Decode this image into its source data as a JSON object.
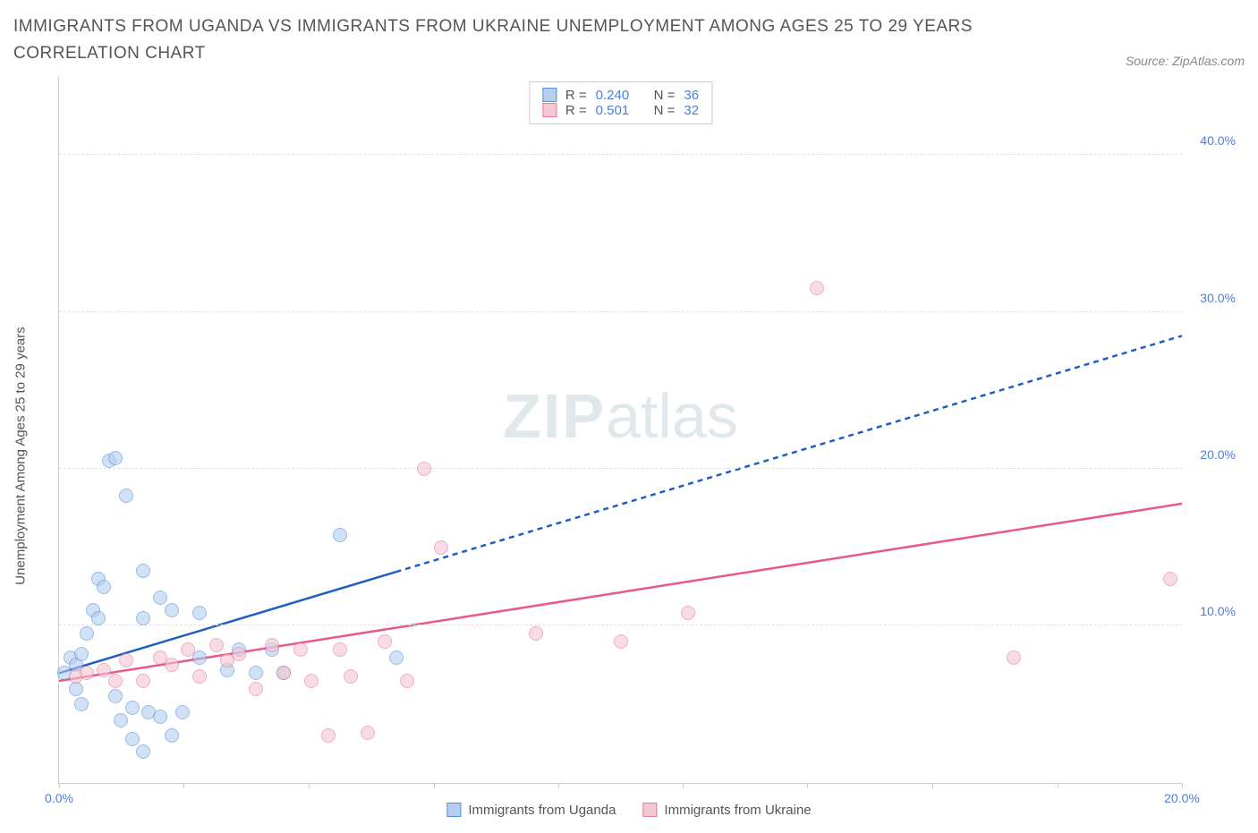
{
  "title": "IMMIGRANTS FROM UGANDA VS IMMIGRANTS FROM UKRAINE UNEMPLOYMENT AMONG AGES 25 TO 29 YEARS CORRELATION CHART",
  "source": "Source: ZipAtlas.com",
  "y_axis_label": "Unemployment Among Ages 25 to 29 years",
  "watermark_zip": "ZIP",
  "watermark_atlas": "atlas",
  "chart": {
    "type": "scatter",
    "xlim": [
      0,
      20
    ],
    "ylim": [
      0,
      45
    ],
    "x_ticks": [
      0,
      2.22,
      4.44,
      6.67,
      8.89,
      11.11,
      13.33,
      15.56,
      17.78,
      20
    ],
    "x_tick_labels": {
      "0": "0.0%",
      "20": "20.0%"
    },
    "y_ticks": [
      10,
      20,
      30,
      40
    ],
    "y_tick_labels": [
      "10.0%",
      "20.0%",
      "30.0%",
      "40.0%"
    ],
    "grid_color": "#e0e0e0",
    "axis_color": "#cccccc",
    "background_color": "#ffffff",
    "point_radius": 8,
    "point_opacity": 0.6,
    "series": [
      {
        "name": "Immigrants from Uganda",
        "color_fill": "#b3cef1",
        "color_stroke": "#5a8fd6",
        "R": "0.240",
        "N": "36",
        "trend": {
          "x1": 0,
          "y1": 7.0,
          "x2": 20,
          "y2": 28.5,
          "solid_until_x": 6.0,
          "color": "#1f5fbf",
          "width": 2.5
        },
        "points": [
          [
            0.1,
            7.0
          ],
          [
            0.2,
            8.0
          ],
          [
            0.3,
            7.5
          ],
          [
            0.3,
            6.0
          ],
          [
            0.4,
            8.2
          ],
          [
            0.5,
            9.5
          ],
          [
            0.6,
            11.0
          ],
          [
            0.7,
            13.0
          ],
          [
            0.7,
            10.5
          ],
          [
            0.8,
            12.5
          ],
          [
            0.9,
            20.5
          ],
          [
            1.0,
            20.7
          ],
          [
            1.2,
            18.3
          ],
          [
            1.0,
            5.5
          ],
          [
            1.1,
            4.0
          ],
          [
            1.3,
            2.8
          ],
          [
            1.3,
            4.8
          ],
          [
            1.5,
            2.0
          ],
          [
            1.6,
            4.5
          ],
          [
            1.5,
            10.5
          ],
          [
            1.5,
            13.5
          ],
          [
            1.8,
            4.2
          ],
          [
            1.8,
            11.8
          ],
          [
            2.0,
            3.0
          ],
          [
            2.0,
            11.0
          ],
          [
            2.2,
            4.5
          ],
          [
            2.5,
            8.0
          ],
          [
            2.5,
            10.8
          ],
          [
            3.0,
            7.2
          ],
          [
            3.2,
            8.5
          ],
          [
            3.5,
            7.0
          ],
          [
            3.8,
            8.5
          ],
          [
            4.0,
            7.0
          ],
          [
            5.0,
            15.8
          ],
          [
            6.0,
            8.0
          ],
          [
            0.4,
            5.0
          ]
        ]
      },
      {
        "name": "Immigrants from Ukraine",
        "color_fill": "#f2c8d2",
        "color_stroke": "#e87a9a",
        "R": "0.501",
        "N": "32",
        "trend": {
          "x1": 0,
          "y1": 6.5,
          "x2": 20,
          "y2": 17.8,
          "solid_until_x": 20,
          "color": "#e85a85",
          "width": 2.5
        },
        "points": [
          [
            0.3,
            6.8
          ],
          [
            0.5,
            7.0
          ],
          [
            0.8,
            7.2
          ],
          [
            1.0,
            6.5
          ],
          [
            1.2,
            7.8
          ],
          [
            1.5,
            6.5
          ],
          [
            1.8,
            8.0
          ],
          [
            2.0,
            7.5
          ],
          [
            2.3,
            8.5
          ],
          [
            2.5,
            6.8
          ],
          [
            2.8,
            8.8
          ],
          [
            3.0,
            7.8
          ],
          [
            3.2,
            8.2
          ],
          [
            3.5,
            6.0
          ],
          [
            3.8,
            8.8
          ],
          [
            4.0,
            7.0
          ],
          [
            4.3,
            8.5
          ],
          [
            4.5,
            6.5
          ],
          [
            4.8,
            3.0
          ],
          [
            5.0,
            8.5
          ],
          [
            5.2,
            6.8
          ],
          [
            5.5,
            3.2
          ],
          [
            5.8,
            9.0
          ],
          [
            6.2,
            6.5
          ],
          [
            6.5,
            20.0
          ],
          [
            6.8,
            15.0
          ],
          [
            8.5,
            9.5
          ],
          [
            10.0,
            9.0
          ],
          [
            11.2,
            10.8
          ],
          [
            13.5,
            31.5
          ],
          [
            17.0,
            8.0
          ],
          [
            19.8,
            13.0
          ]
        ]
      }
    ]
  },
  "legend_top": {
    "r_label": "R =",
    "n_label": "N ="
  }
}
